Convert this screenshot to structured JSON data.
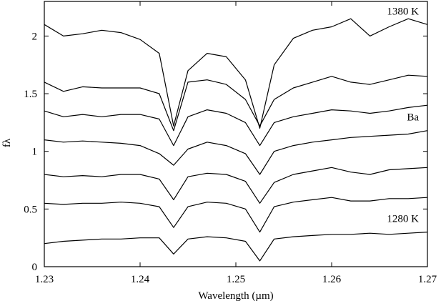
{
  "chart_data": {
    "type": "line",
    "title": "",
    "xlabel": "Wavelength (µm)",
    "ylabel": "fλ",
    "xlim": [
      1.23,
      1.27
    ],
    "ylim": [
      0,
      2.3
    ],
    "xticks": [
      1.23,
      1.24,
      1.25,
      1.26,
      1.27
    ],
    "xtick_labels": [
      "1.23",
      "1.24",
      "1.25",
      "1.26",
      "1.27"
    ],
    "yticks": [
      0,
      0.5,
      1,
      1.5,
      2
    ],
    "ytick_labels": [
      "0",
      "0.5",
      "1",
      "1.5",
      "2"
    ],
    "grid": false,
    "line_labels": [
      {
        "text": "1380 K",
        "series": 0
      },
      {
        "text": "Ba",
        "series": 3
      },
      {
        "text": "1280 K",
        "series": 6
      }
    ],
    "series": [
      {
        "x": [
          1.23,
          1.232,
          1.234,
          1.236,
          1.238,
          1.24,
          1.242,
          1.2435,
          1.245,
          1.247,
          1.249,
          1.251,
          1.2525,
          1.254,
          1.256,
          1.258,
          1.26,
          1.262,
          1.264,
          1.266,
          1.268,
          1.27
        ],
        "values": [
          2.1,
          2.0,
          2.02,
          2.05,
          2.03,
          1.97,
          1.85,
          1.22,
          1.7,
          1.85,
          1.82,
          1.62,
          1.2,
          1.75,
          1.98,
          2.05,
          2.08,
          2.15,
          2.0,
          2.08,
          2.15,
          2.1
        ]
      },
      {
        "x": [
          1.23,
          1.232,
          1.234,
          1.236,
          1.238,
          1.24,
          1.242,
          1.2435,
          1.245,
          1.247,
          1.249,
          1.251,
          1.2525,
          1.254,
          1.256,
          1.258,
          1.26,
          1.262,
          1.264,
          1.266,
          1.268,
          1.27
        ],
        "values": [
          1.6,
          1.52,
          1.56,
          1.55,
          1.55,
          1.55,
          1.5,
          1.18,
          1.6,
          1.62,
          1.58,
          1.45,
          1.22,
          1.45,
          1.55,
          1.6,
          1.65,
          1.6,
          1.58,
          1.62,
          1.66,
          1.65
        ]
      },
      {
        "x": [
          1.23,
          1.232,
          1.234,
          1.236,
          1.238,
          1.24,
          1.242,
          1.2435,
          1.245,
          1.247,
          1.249,
          1.251,
          1.2525,
          1.254,
          1.256,
          1.258,
          1.26,
          1.262,
          1.264,
          1.266,
          1.268,
          1.27
        ],
        "values": [
          1.35,
          1.3,
          1.32,
          1.3,
          1.32,
          1.32,
          1.28,
          1.05,
          1.3,
          1.36,
          1.33,
          1.25,
          1.05,
          1.25,
          1.3,
          1.33,
          1.36,
          1.35,
          1.33,
          1.35,
          1.38,
          1.4
        ]
      },
      {
        "x": [
          1.23,
          1.232,
          1.234,
          1.236,
          1.238,
          1.24,
          1.242,
          1.2435,
          1.245,
          1.247,
          1.249,
          1.251,
          1.2525,
          1.254,
          1.256,
          1.258,
          1.26,
          1.262,
          1.264,
          1.266,
          1.268,
          1.27
        ],
        "values": [
          1.1,
          1.08,
          1.09,
          1.08,
          1.07,
          1.05,
          0.98,
          0.88,
          1.02,
          1.08,
          1.05,
          0.98,
          0.8,
          1.0,
          1.05,
          1.08,
          1.1,
          1.12,
          1.13,
          1.14,
          1.15,
          1.18
        ]
      },
      {
        "x": [
          1.23,
          1.232,
          1.234,
          1.236,
          1.238,
          1.24,
          1.242,
          1.2435,
          1.245,
          1.247,
          1.249,
          1.251,
          1.2525,
          1.254,
          1.256,
          1.258,
          1.26,
          1.262,
          1.264,
          1.266,
          1.268,
          1.27
        ],
        "values": [
          0.8,
          0.78,
          0.79,
          0.78,
          0.8,
          0.8,
          0.76,
          0.58,
          0.78,
          0.81,
          0.8,
          0.74,
          0.55,
          0.73,
          0.8,
          0.83,
          0.86,
          0.82,
          0.8,
          0.84,
          0.85,
          0.86
        ]
      },
      {
        "x": [
          1.23,
          1.232,
          1.234,
          1.236,
          1.238,
          1.24,
          1.242,
          1.2435,
          1.245,
          1.247,
          1.249,
          1.251,
          1.2525,
          1.254,
          1.256,
          1.258,
          1.26,
          1.262,
          1.264,
          1.266,
          1.268,
          1.27
        ],
        "values": [
          0.55,
          0.54,
          0.55,
          0.55,
          0.56,
          0.55,
          0.52,
          0.34,
          0.52,
          0.56,
          0.55,
          0.5,
          0.3,
          0.52,
          0.56,
          0.58,
          0.6,
          0.57,
          0.57,
          0.59,
          0.59,
          0.6
        ]
      },
      {
        "x": [
          1.23,
          1.232,
          1.234,
          1.236,
          1.238,
          1.24,
          1.242,
          1.2435,
          1.245,
          1.247,
          1.249,
          1.251,
          1.2525,
          1.254,
          1.256,
          1.258,
          1.26,
          1.262,
          1.264,
          1.266,
          1.268,
          1.27
        ],
        "values": [
          0.2,
          0.22,
          0.23,
          0.24,
          0.24,
          0.25,
          0.25,
          0.11,
          0.24,
          0.26,
          0.25,
          0.22,
          0.05,
          0.24,
          0.26,
          0.27,
          0.28,
          0.28,
          0.29,
          0.28,
          0.29,
          0.3
        ]
      }
    ]
  }
}
